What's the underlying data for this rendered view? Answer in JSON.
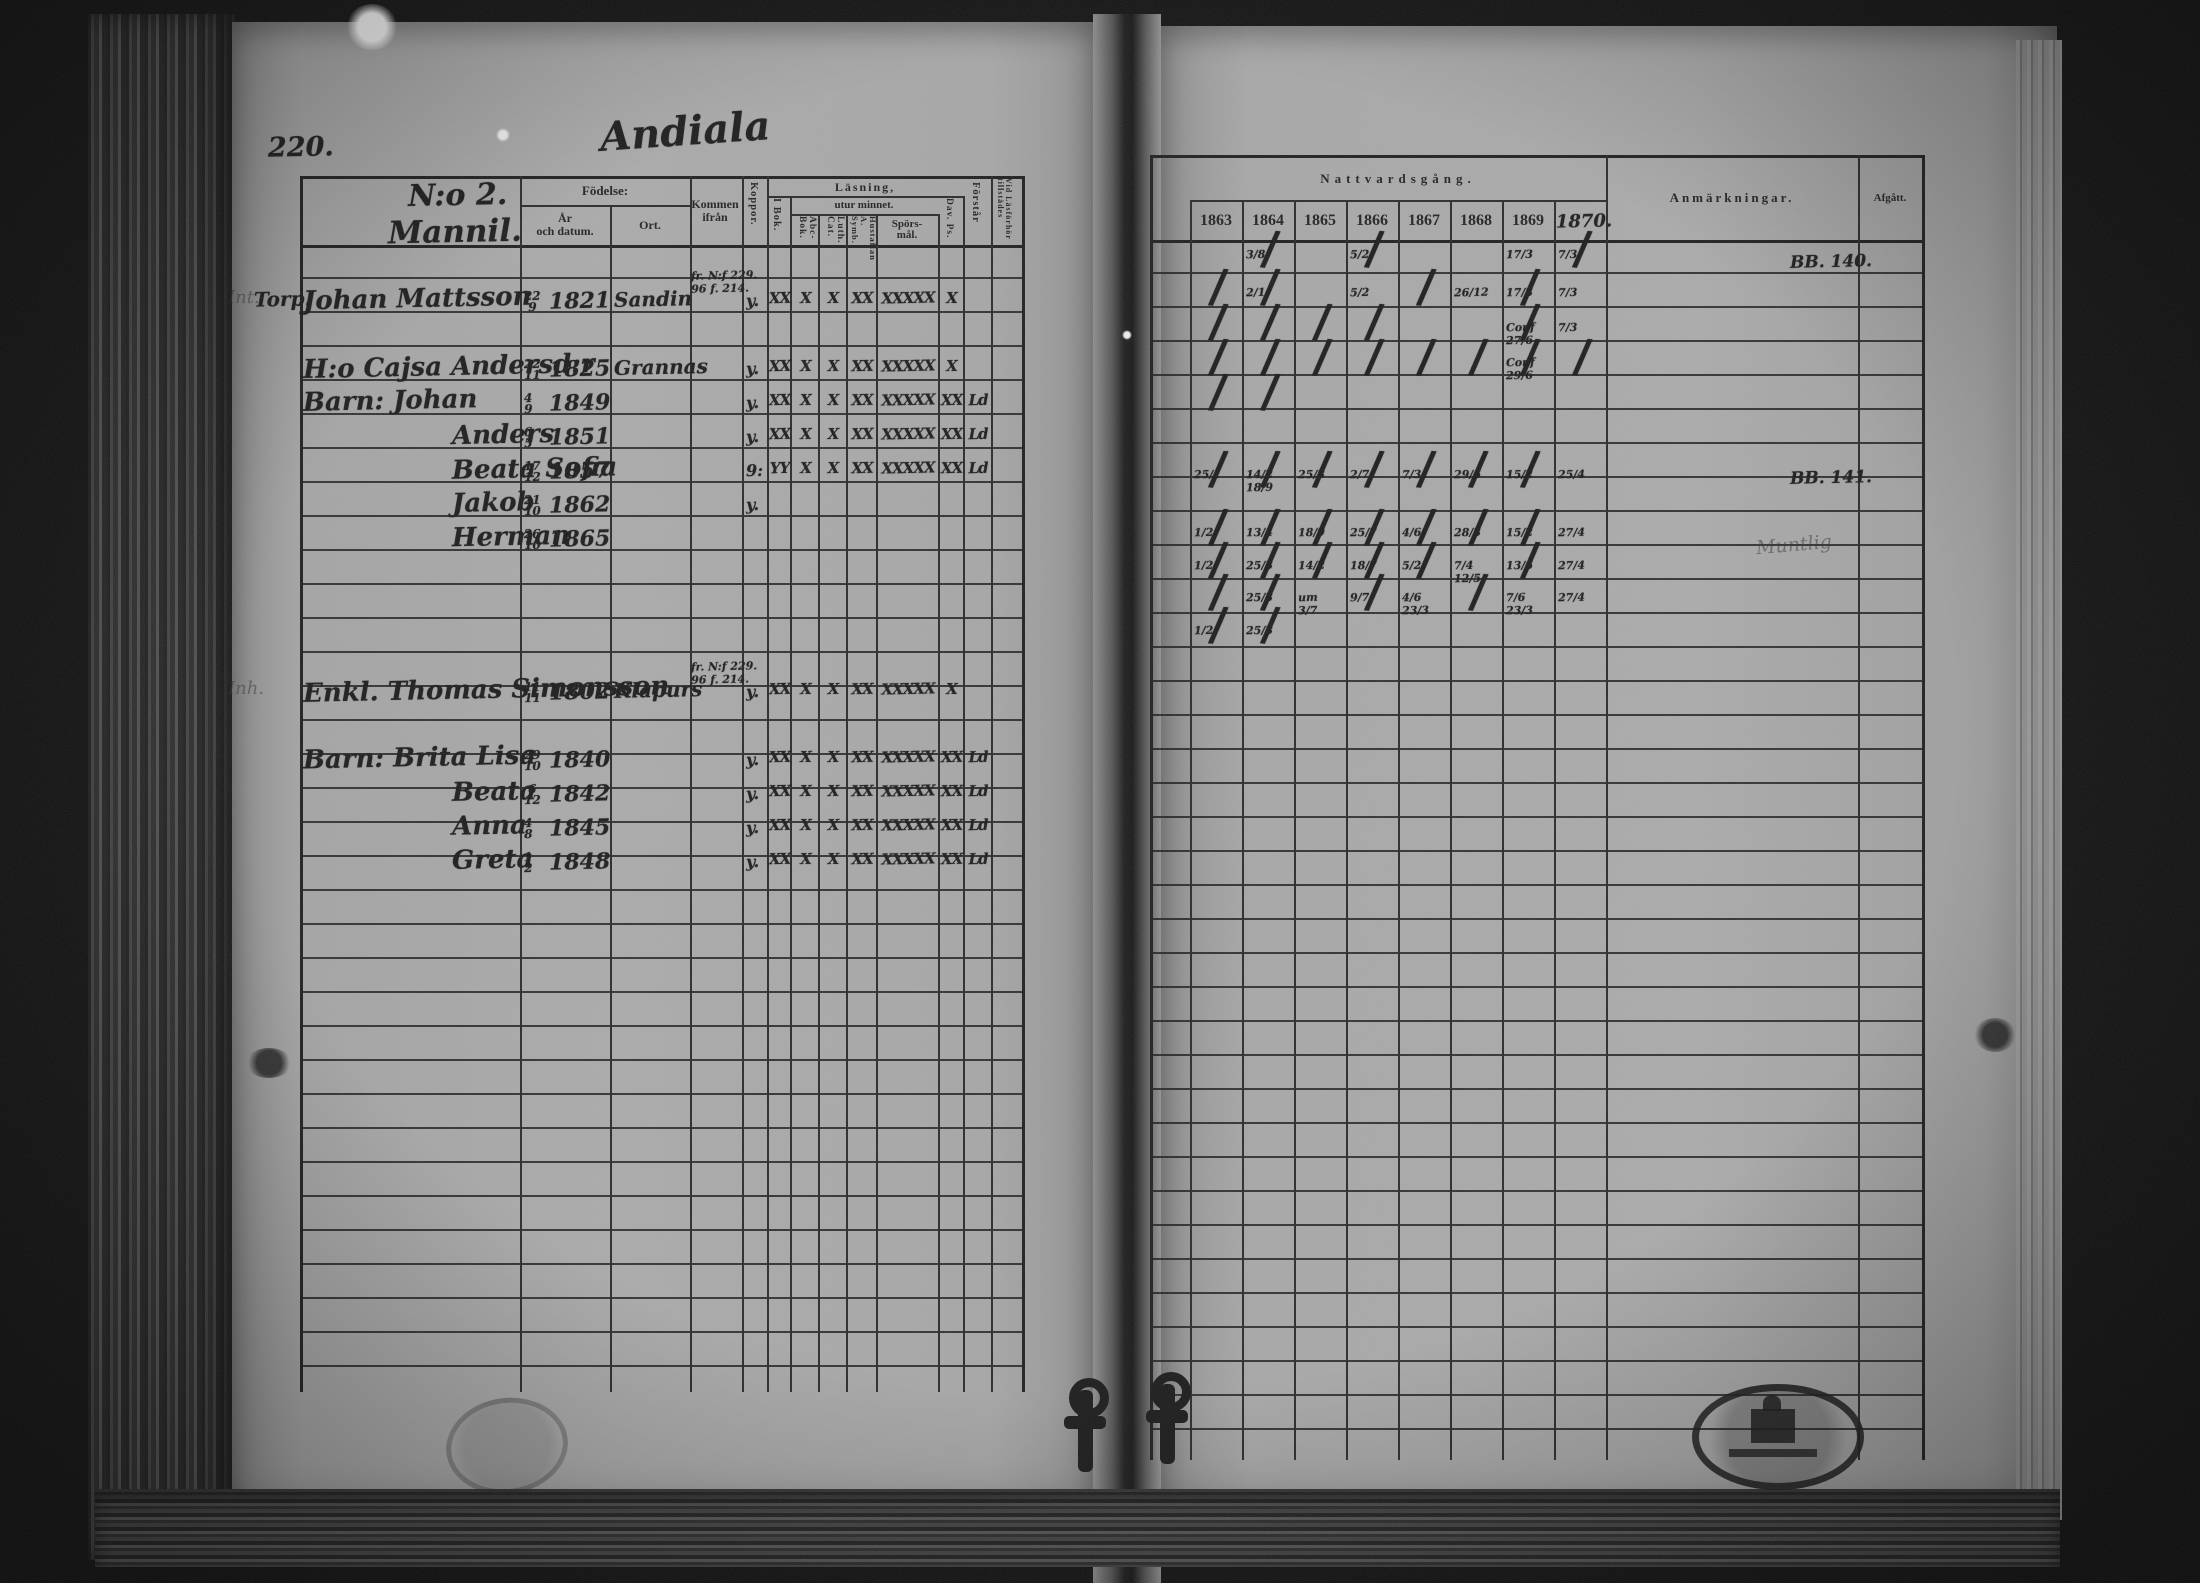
{
  "page": {
    "number": "220.",
    "title_handwritten": "Andiala",
    "household_no": "N:o 2.",
    "household_name": "Mannil."
  },
  "headers": {
    "fodelse": "Födelse:",
    "ar_och_datum": "År\noch datum.",
    "ort": "Ort.",
    "kommen_ifran": "Kommen ifrån",
    "koppor": "Koppor.",
    "lasning": "Läsning,",
    "utur_minnet": "utur minnet.",
    "i_bok": "I Bok.",
    "abc_bok": "Abc-Bok.",
    "luth_cat": "Luth. Cat.",
    "hustaflan": "Hustaflan A. Symb.",
    "sporsmal": "Spörs-\nmål.",
    "dav_ps": "Dav. Ps.",
    "forstar": "Förstår",
    "vid_lasforhor": "Vid Läsförhör tillstädes",
    "nattvardsgang": "Nattvardsgång.",
    "anmarkningar": "Anmärkningar.",
    "afgatt": "Afgått."
  },
  "years": [
    "1863",
    "1864",
    "1865",
    "1866",
    "1867",
    "1868",
    "1869",
    "1870."
  ],
  "rows": [
    {
      "pencil": "Int.",
      "prefix": "Torp.",
      "name": "Johan Mattsson",
      "day": "22",
      "month": "9",
      "year": "1821",
      "ort": "Sandin",
      "from": "fr. N:f 229.\n96 f. 214.",
      "koppor": "y.",
      "reading": [
        "XX",
        "X",
        "X",
        "XX",
        "XXXXX",
        "X",
        ""
      ],
      "communion": [
        "",
        "3/8 ∕",
        "",
        "5/2 ∕",
        "",
        "",
        "17/3",
        "7/3 ∕"
      ],
      "note": "BB. 140."
    },
    {
      "pencil": "",
      "prefix": "",
      "name": "H:o Cajsa Andersd:r",
      "day": "22",
      "month": "11",
      "year": "1825",
      "ort": "Grannas",
      "from": "",
      "koppor": "y.",
      "reading": [
        "XX",
        "X",
        "X",
        "XX",
        "XXXXX",
        "X",
        ""
      ],
      "communion": [
        "∕",
        "2/1 ∕",
        "",
        "5/2",
        "∕",
        "26/12",
        "17/3 ∕",
        "7/3"
      ],
      "note": ""
    },
    {
      "pencil": "",
      "prefix": "",
      "name": "Barn: Johan",
      "day": "4",
      "month": "9",
      "year": "1849",
      "ort": "",
      "from": "",
      "koppor": "y.",
      "reading": [
        "XX",
        "X",
        "X",
        "XX",
        "XXXXX",
        "XX",
        "Ld"
      ],
      "communion": [
        "∕",
        "∕",
        "∕",
        "∕",
        "",
        "",
        "Conf 27/6 ∕",
        "7/3"
      ],
      "note": ""
    },
    {
      "pencil": "",
      "prefix": "",
      "name": "Anders",
      "day": "6",
      "month": "5",
      "year": "1851",
      "ort": "",
      "from": "",
      "koppor": "y.",
      "reading": [
        "XX",
        "X",
        "X",
        "XX",
        "XXXXX",
        "XX",
        "Ld"
      ],
      "communion": [
        "∕",
        "∕",
        "∕",
        "∕",
        "∕",
        "∕",
        "Conf 29/6 ∕",
        "∕"
      ],
      "note": ""
    },
    {
      "pencil": "",
      "prefix": "",
      "name": "Beata Sofia",
      "day": "17",
      "month": "12",
      "year": "1857",
      "ort": "",
      "from": "",
      "koppor": "9:",
      "reading": [
        "YY",
        "X",
        "X",
        "XX",
        "XXXXX",
        "XX",
        "Ld"
      ],
      "communion": [
        "∕",
        "∕",
        "",
        "",
        "",
        "",
        "",
        ""
      ],
      "note": ""
    },
    {
      "pencil": "",
      "prefix": "",
      "name": "Jakob",
      "day": "21",
      "month": "10",
      "year": "1862",
      "ort": "",
      "from": "",
      "koppor": "y.",
      "reading": [
        "",
        "",
        "",
        "",
        "",
        "",
        ""
      ],
      "communion": [
        "",
        "",
        "",
        "",
        "",
        "",
        "",
        ""
      ],
      "note": ""
    },
    {
      "pencil": "",
      "prefix": "",
      "name": "Herman",
      "day": "26",
      "month": "10",
      "year": "1865",
      "ort": "",
      "from": "",
      "koppor": "",
      "reading": [
        "",
        "",
        "",
        "",
        "",
        "",
        ""
      ],
      "communion": [
        "",
        "",
        "",
        "",
        "",
        "",
        "",
        ""
      ],
      "note": ""
    },
    {
      "pencil": "Inh.",
      "prefix": "",
      "name": "Enkl. Thomas Simonsson",
      "day": "11",
      "month": "11",
      "year": "1802",
      "ort": "Klapurs",
      "from": "fr. N:f 229.\n96 f. 214.",
      "koppor": "y.",
      "reading": [
        "XX",
        "X",
        "X",
        "XX",
        "XXXXX",
        "X",
        ""
      ],
      "communion": [
        "25/1 ∕",
        "14/2 18/9 ∕",
        "25/3 ∕",
        "2/7 ∕",
        "7/3 ∕",
        "29/6 ∕",
        "15/2 ∕",
        "25/4"
      ],
      "note": "BB. 141."
    },
    {
      "pencil": "",
      "prefix": "",
      "name": "Barn: Brita Lisa",
      "day": "29",
      "month": "10",
      "year": "1840",
      "ort": "",
      "from": "",
      "koppor": "y.",
      "reading": [
        "XX",
        "X",
        "X",
        "XX",
        "XXXXX",
        "XX",
        "Ld"
      ],
      "communion": [
        "1/2 ∕",
        "13/4 ∕",
        "18/9 ∕",
        "25/7 ∕",
        "4/6 ∕",
        "28/3 ∕",
        "15/2 ∕",
        "27/4"
      ],
      "note": ""
    },
    {
      "pencil": "",
      "prefix": "",
      "name": "Beata",
      "day": "6",
      "month": "12",
      "year": "1842",
      "ort": "",
      "from": "",
      "koppor": "y.",
      "reading": [
        "XX",
        "X",
        "X",
        "XX",
        "XXXXX",
        "XX",
        "Ld"
      ],
      "communion": [
        "1/2 ∕",
        "25/3 ∕",
        "14/2 ∕",
        "18/7 ∕",
        "5/2 ∕",
        "7/4 12/5",
        "13/6 ∕",
        "27/4"
      ],
      "note": ""
    },
    {
      "pencil": "",
      "prefix": "",
      "name": "Anna",
      "day": "4",
      "month": "8",
      "year": "1845",
      "ort": "",
      "from": "",
      "koppor": "y.",
      "reading": [
        "XX",
        "X",
        "X",
        "XX",
        "XXXXX",
        "XX",
        "Ld"
      ],
      "communion": [
        "∕",
        "25/3 ∕",
        "um 3/7",
        "9/7 ∕",
        "4/6 23/3",
        "∕",
        "7/6 23/3",
        "27/4"
      ],
      "note": ""
    },
    {
      "pencil": "",
      "prefix": "",
      "name": "Greta",
      "day": "1",
      "month": "2",
      "year": "1848",
      "ort": "",
      "from": "",
      "koppor": "y.",
      "reading": [
        "XX",
        "X",
        "X",
        "XX",
        "XXXXX",
        "XX",
        "Ld"
      ],
      "communion": [
        "1/2 ∕",
        "25/3 ∕",
        "",
        "",
        "",
        "",
        "",
        ""
      ],
      "note": ""
    }
  ],
  "artifacts": {
    "pencil_note_right": "Muntlig"
  }
}
